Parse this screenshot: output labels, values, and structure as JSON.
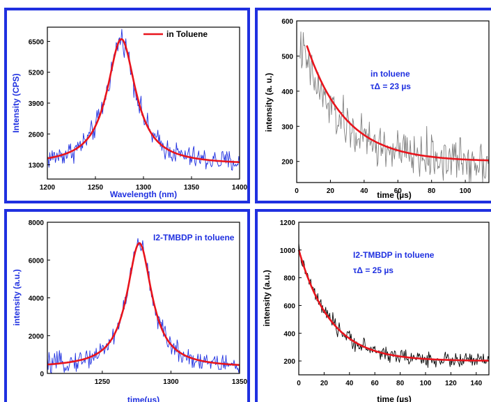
{
  "chart_data": [
    {
      "type": "line",
      "xlabel": "Wavelength (nm)",
      "ylabel": "Intensity (CPS)",
      "xlim": [
        1200,
        1400
      ],
      "ylim": [
        700,
        7100
      ],
      "xticks": [
        1200,
        1250,
        1300,
        1350,
        1400
      ],
      "yticks": [
        1300,
        2600,
        3900,
        5200,
        6500
      ],
      "legend": {
        "position": "top-right",
        "entries": [
          "in Toluene"
        ]
      },
      "annotations": [],
      "series": [
        {
          "name": "",
          "color": "#1f30e0",
          "kind": "noisy",
          "model": {
            "form": "lorentzian",
            "center": 1277,
            "hwhm": 18,
            "amplitude": 5300,
            "baseline": 1300,
            "noise": 240
          }
        },
        {
          "name": "in Toluene",
          "color": "#e8141c",
          "kind": "fit",
          "model": {
            "form": "lorentzian",
            "center": 1277,
            "hwhm": 18,
            "amplitude": 5300,
            "baseline": 1300
          }
        }
      ]
    },
    {
      "type": "line",
      "xlabel": "time (µs)",
      "ylabel": "intensity (a. u.)",
      "xlim": [
        0,
        114
      ],
      "ylim": [
        140,
        600
      ],
      "xticks": [
        0,
        20,
        40,
        60,
        80,
        100
      ],
      "yticks": [
        200,
        300,
        400,
        500,
        600
      ],
      "legend": null,
      "annotations": [
        {
          "text": "in toluene"
        },
        {
          "text": "τΔ = 23 µs"
        }
      ],
      "series": [
        {
          "name": "",
          "color": "#808080",
          "kind": "noisy",
          "model": {
            "form": "exp",
            "start": 2,
            "end": 114,
            "amplitude": 330,
            "tau": 23,
            "offset": 200,
            "noise": 32
          }
        },
        {
          "name": "",
          "color": "#e8141c",
          "kind": "fit",
          "model": {
            "form": "exp",
            "start": 6,
            "end": 114,
            "amplitude": 330,
            "tau": 23,
            "offset": 200
          }
        }
      ]
    },
    {
      "type": "line",
      "xlabel": "time(µs)",
      "ylabel": "intensity (a.u.)",
      "xlim": [
        1210,
        1350
      ],
      "ylim": [
        0,
        8000
      ],
      "xticks": [
        1250,
        1300,
        1350
      ],
      "yticks": [
        0,
        2000,
        4000,
        6000,
        8000
      ],
      "legend": null,
      "annotations": [
        {
          "text": "I2-TMBDP in toluene"
        }
      ],
      "series": [
        {
          "name": "",
          "color": "#1f30e0",
          "kind": "noisy",
          "model": {
            "form": "lorentzian",
            "center": 1277,
            "hwhm": 11,
            "amplitude": 6600,
            "baseline": 300,
            "noise": 260
          }
        },
        {
          "name": "",
          "color": "#e8141c",
          "kind": "fit",
          "model": {
            "form": "lorentzian",
            "center": 1277,
            "hwhm": 11,
            "amplitude": 6600,
            "baseline": 300
          }
        }
      ]
    },
    {
      "type": "line",
      "xlabel": "time (µs)",
      "ylabel": "intensity (a.u.)",
      "xlim": [
        0,
        150
      ],
      "ylim": [
        100,
        1200
      ],
      "xticks": [
        0,
        20,
        40,
        60,
        80,
        100,
        120,
        140
      ],
      "yticks": [
        200,
        400,
        600,
        800,
        1000,
        1200
      ],
      "legend": null,
      "annotations": [
        {
          "text": "I2-TMBDP in toluene"
        },
        {
          "text": "τΔ = 25 µs"
        }
      ],
      "series": [
        {
          "name": "",
          "color": "#000000",
          "kind": "noisy",
          "model": {
            "form": "exp",
            "start": 0,
            "end": 150,
            "amplitude": 800,
            "tau": 25,
            "offset": 200,
            "noise": 28
          }
        },
        {
          "name": "",
          "color": "#e8141c",
          "kind": "fit",
          "model": {
            "form": "exp",
            "start": 0,
            "end": 150,
            "amplitude": 800,
            "tau": 25,
            "offset": 200
          }
        }
      ]
    }
  ]
}
